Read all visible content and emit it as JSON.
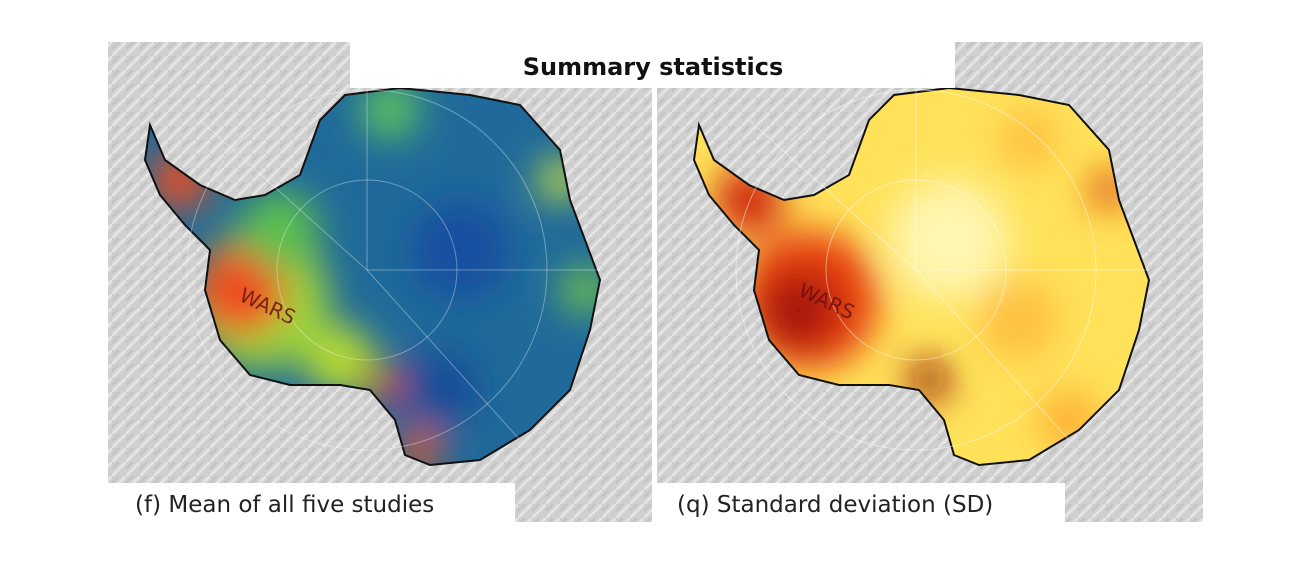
{
  "title": "Summary statistics",
  "panels": [
    {
      "caption": "(f) Mean of all five studies",
      "annotation": "WARS"
    },
    {
      "caption": "(q) Standard deviation (SD)",
      "annotation": "WARS"
    }
  ]
}
